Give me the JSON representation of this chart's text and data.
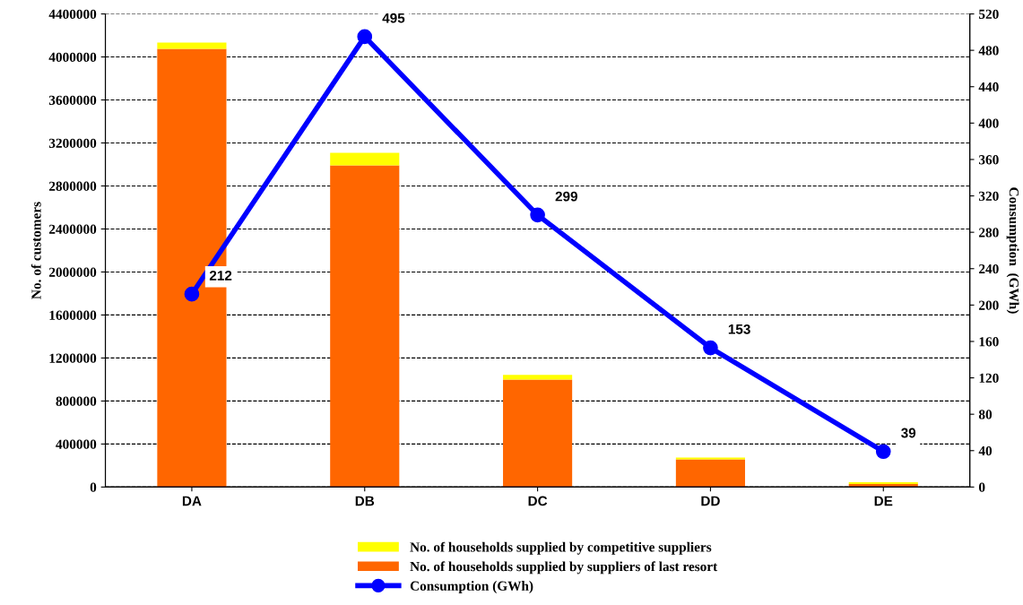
{
  "chart_data": {
    "type": "bar",
    "stacked": true,
    "categories": [
      "DA",
      "DB",
      "DC",
      "DD",
      "DE"
    ],
    "series": [
      {
        "name": "No. of households supplied by suppliers of last resort",
        "color": "#ff6600",
        "values": [
          4075000,
          2992000,
          1000000,
          258000,
          28000
        ]
      },
      {
        "name": "No. of households supplied by competitive suppliers",
        "color": "#ffff00",
        "values": [
          58000,
          116000,
          42000,
          17000,
          17000
        ]
      },
      {
        "name": "Consumption (GWh)",
        "type": "line",
        "axis": "y2",
        "color": "#0000ff",
        "marker": "circle",
        "data_labels": true,
        "values": [
          212,
          495,
          299,
          153,
          39
        ]
      }
    ],
    "ylabel": "No. of customers",
    "y2label": "Consumption  (GWh)",
    "ylim": [
      0,
      4400000
    ],
    "yticks": [
      0,
      400000,
      800000,
      1200000,
      1600000,
      2000000,
      2400000,
      2800000,
      3200000,
      3600000,
      4000000,
      4400000
    ],
    "y2lim": [
      0,
      520
    ],
    "y2ticks": [
      0,
      40,
      80,
      120,
      160,
      200,
      240,
      280,
      320,
      360,
      400,
      440,
      480,
      520
    ],
    "grid": "y",
    "legend": "bottom"
  }
}
